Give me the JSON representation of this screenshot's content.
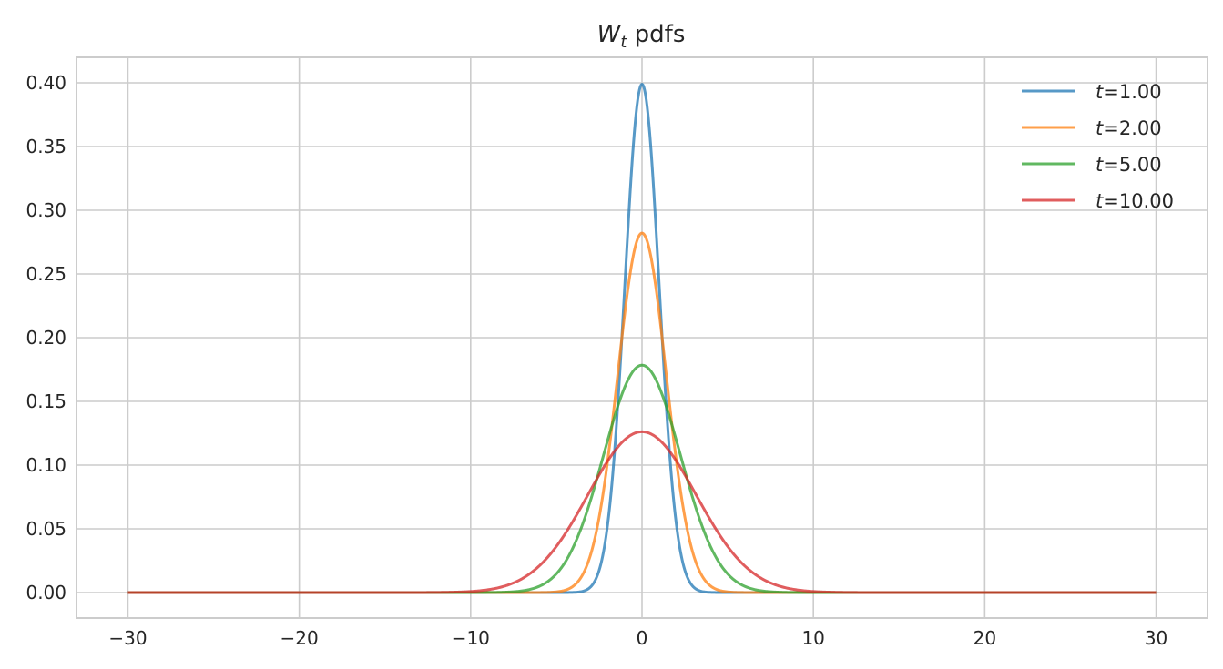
{
  "chart_data": {
    "type": "line",
    "title": "W_t pdfs",
    "title_parts": {
      "main": "W",
      "sub": "t",
      "rest": " pdfs"
    },
    "xlabel": "",
    "ylabel": "",
    "xlim": [
      -33,
      33
    ],
    "ylim": [
      -0.02,
      0.42
    ],
    "xticks": [
      -30,
      -20,
      -10,
      0,
      10,
      20,
      30
    ],
    "xtick_labels": [
      "−30",
      "−20",
      "−10",
      "0",
      "10",
      "20",
      "30"
    ],
    "yticks": [
      0.0,
      0.05,
      0.1,
      0.15,
      0.2,
      0.25,
      0.3,
      0.35,
      0.4
    ],
    "ytick_labels": [
      "0.00",
      "0.05",
      "0.10",
      "0.15",
      "0.20",
      "0.25",
      "0.30",
      "0.35",
      "0.40"
    ],
    "grid": true,
    "legend_position": "top-right",
    "curve_x_range": [
      -30,
      30
    ],
    "series": [
      {
        "name": "t=1.00",
        "label_var": "t",
        "label_val": "=1.00",
        "t": 1,
        "color": "#1f77b4",
        "peak": 0.399
      },
      {
        "name": "t=2.00",
        "label_var": "t",
        "label_val": "=2.00",
        "t": 2,
        "color": "#ff7f0e",
        "peak": 0.282
      },
      {
        "name": "t=5.00",
        "label_var": "t",
        "label_val": "=5.00",
        "t": 5,
        "color": "#2ca02c",
        "peak": 0.178
      },
      {
        "name": "t=10.00",
        "label_var": "t",
        "label_val": "=10.00",
        "t": 10,
        "color": "#d62728",
        "peak": 0.126
      }
    ]
  }
}
